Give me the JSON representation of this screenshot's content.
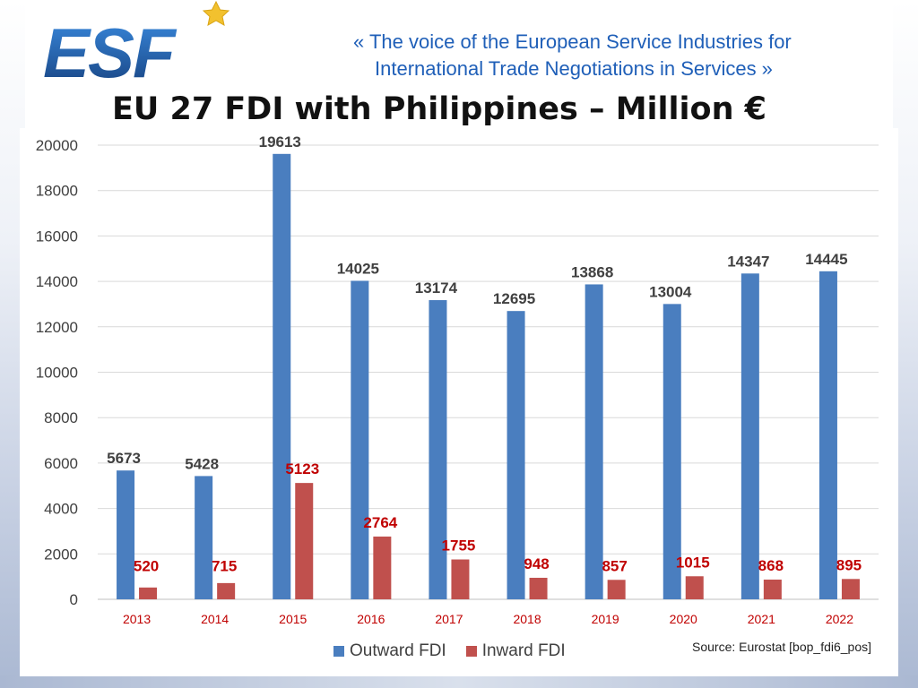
{
  "header": {
    "logo_text": "ESF",
    "tagline_line1": "«  The voice of the European Service Industries for",
    "tagline_line2": "International Trade Negotiations in Services  »"
  },
  "colors": {
    "outward": "#4a7ebf",
    "inward": "#c0504d",
    "inward_label": "#c00000",
    "outward_label": "#404040",
    "brand_blue": "#1e63b4",
    "star": "#f2c12e"
  },
  "chart_data": {
    "type": "bar",
    "title": "EU 27 FDI with Philippines – Million €",
    "categories": [
      "2013",
      "2014",
      "2015",
      "2016",
      "2017",
      "2018",
      "2019",
      "2020",
      "2021",
      "2022"
    ],
    "series": [
      {
        "name": "Outward FDI",
        "values": [
          5673,
          5428,
          19613,
          14025,
          13174,
          12695,
          13868,
          13004,
          14347,
          14445
        ]
      },
      {
        "name": "Inward FDI",
        "values": [
          520,
          715,
          5123,
          2764,
          1755,
          948,
          857,
          1015,
          868,
          895
        ]
      }
    ],
    "ylim": [
      0,
      20000
    ],
    "yticks": [
      0,
      2000,
      4000,
      6000,
      8000,
      10000,
      12000,
      14000,
      16000,
      18000,
      20000
    ],
    "grid": true,
    "legend": "bottom",
    "xlabel": "",
    "ylabel": "",
    "source": "Source: Eurostat [bop_fdi6_pos]"
  }
}
